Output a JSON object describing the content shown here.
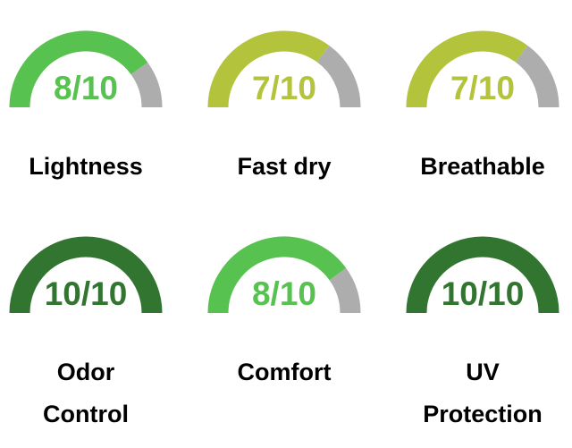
{
  "colors": {
    "track": "#adadad",
    "high": "#317530",
    "good": "#57c24f",
    "medium": "#b3c43c"
  },
  "gauges": [
    {
      "score": "8/10",
      "value": 8,
      "max": 10,
      "color": "#57c24f",
      "label_lines": [
        "Lightness"
      ]
    },
    {
      "score": "7/10",
      "value": 7,
      "max": 10,
      "color": "#b3c43c",
      "label_lines": [
        "Fast dry"
      ]
    },
    {
      "score": "7/10",
      "value": 7,
      "max": 10,
      "color": "#b3c43c",
      "label_lines": [
        "Breathable"
      ]
    },
    {
      "score": "10/10",
      "value": 10,
      "max": 10,
      "color": "#317530",
      "label_lines": [
        "Odor",
        "Control"
      ]
    },
    {
      "score": "8/10",
      "value": 8,
      "max": 10,
      "color": "#57c24f",
      "label_lines": [
        "Comfort"
      ]
    },
    {
      "score": "10/10",
      "value": 10,
      "max": 10,
      "color": "#317530",
      "label_lines": [
        "UV",
        "Protection"
      ]
    }
  ]
}
